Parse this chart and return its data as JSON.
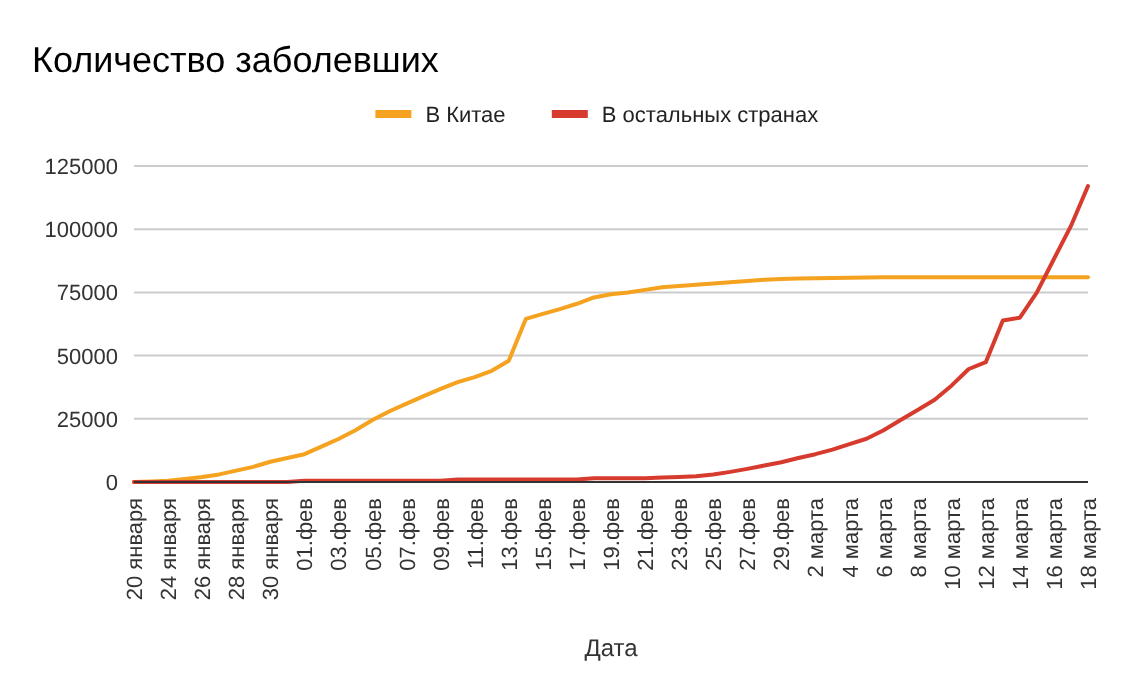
{
  "chart_data": {
    "type": "line",
    "title": "Количество заболевших",
    "xlabel": "Дата",
    "categories": [
      "20 января",
      null,
      "24 января",
      null,
      "26 января",
      null,
      "28 января",
      null,
      "30 января",
      null,
      "01.фев",
      null,
      "03.фев",
      null,
      "05.фев",
      null,
      "07.фев",
      null,
      "09.фев",
      null,
      "11.фев",
      null,
      "13.фев",
      null,
      "15.фев",
      null,
      "17.фев",
      null,
      "19.фев",
      null,
      "21.фев",
      null,
      "23.фев",
      null,
      "25.фев",
      null,
      "27.фев",
      null,
      "29.фев",
      null,
      "2 марта",
      null,
      "4 марта",
      null,
      "6 марта",
      null,
      "8 марта",
      null,
      "10 марта",
      null,
      "12 марта",
      null,
      "14 марта",
      null,
      "16 марта",
      null,
      "18 марта"
    ],
    "series": [
      {
        "name": "В Китае",
        "color": "#f4a21f",
        "values": [
          0,
          200,
          500,
          1200,
          2000,
          3000,
          4500,
          6000,
          8000,
          9500,
          11000,
          14000,
          17000,
          20500,
          24500,
          28000,
          31000,
          34000,
          36800,
          39500,
          41500,
          44000,
          48000,
          64500,
          66500,
          68400,
          70500,
          73000,
          74300,
          75000,
          76000,
          77000,
          77500,
          78000,
          78500,
          79000,
          79500,
          80000,
          80300,
          80500,
          80600,
          80700,
          80800,
          80900,
          81000,
          81000,
          81000,
          81000,
          81000,
          81000,
          81000,
          81000,
          81000,
          81000,
          81000,
          81000,
          81000
        ]
      },
      {
        "name": "В остальных странах",
        "color": "#d63b2e",
        "values": [
          0,
          0,
          0,
          0,
          0,
          0,
          0,
          0,
          0,
          0,
          500,
          500,
          500,
          500,
          500,
          500,
          500,
          500,
          500,
          1000,
          1000,
          1000,
          1000,
          1000,
          1000,
          1000,
          1000,
          1500,
          1500,
          1500,
          1500,
          1800,
          2000,
          2300,
          3000,
          4000,
          5200,
          6500,
          7800,
          9500,
          11000,
          12800,
          15000,
          17100,
          20500,
          24500,
          28500,
          32500,
          38200,
          44700,
          47400,
          63900,
          65000,
          75000,
          88200,
          101300,
          117100
        ]
      }
    ],
    "ylim": [
      0,
      125000
    ],
    "yticks": [
      0,
      25000,
      50000,
      75000,
      100000,
      125000
    ],
    "grid": "y",
    "legend": "top",
    "marker": "none",
    "line_style": "solid"
  }
}
